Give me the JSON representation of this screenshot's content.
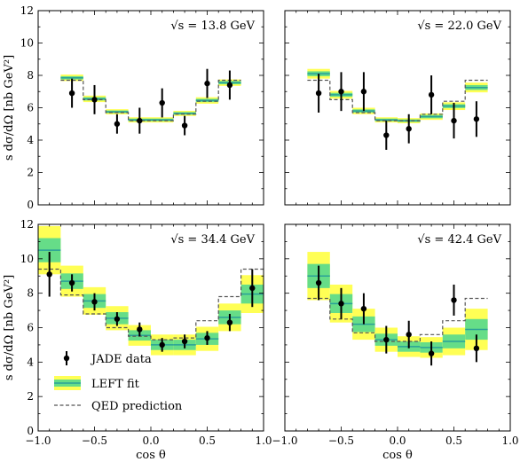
{
  "colors": {
    "data": "#000000",
    "fit_line": "#2aa198",
    "band_inner": "#66dd88",
    "band_outer": "#ffff55",
    "qed": "#555555",
    "frame": "#000000"
  },
  "shared": {
    "xlabel": "cos θ",
    "ylabel": "s dσ/dΩ [nb GeV²]",
    "xticks": [
      "−1.0",
      "−0.5",
      "0.0",
      "0.5",
      "1.0"
    ],
    "yticks": [
      "0",
      "2",
      "4",
      "6",
      "8",
      "10",
      "12"
    ]
  },
  "legend": {
    "data": "JADE data",
    "fit": "LEFT fit",
    "qed": "QED prediction"
  },
  "chart_data": [
    {
      "type": "scatter",
      "energy_label": "√s = 13.8 GeV",
      "xlim": [
        -1.0,
        1.0
      ],
      "ylim": [
        0,
        12
      ],
      "bins": [
        [
          -0.8,
          -0.6
        ],
        [
          -0.6,
          -0.4
        ],
        [
          -0.4,
          -0.2
        ],
        [
          -0.2,
          0.0
        ],
        [
          0.0,
          0.2
        ],
        [
          0.2,
          0.4
        ],
        [
          0.4,
          0.6
        ],
        [
          0.6,
          0.8
        ]
      ],
      "data": [
        {
          "x": -0.7,
          "y": 6.9,
          "err": 0.9
        },
        {
          "x": -0.5,
          "y": 6.5,
          "err": 0.9
        },
        {
          "x": -0.3,
          "y": 5.0,
          "err": 0.6
        },
        {
          "x": -0.1,
          "y": 5.2,
          "err": 0.8
        },
        {
          "x": 0.1,
          "y": 6.3,
          "err": 0.9
        },
        {
          "x": 0.3,
          "y": 4.9,
          "err": 0.6
        },
        {
          "x": 0.5,
          "y": 7.5,
          "err": 0.9
        },
        {
          "x": 0.7,
          "y": 7.4,
          "err": 0.9
        }
      ],
      "fit": [
        7.85,
        6.55,
        5.75,
        5.25,
        5.25,
        5.65,
        6.45,
        7.55
      ],
      "fit_unc": [
        0.1,
        0.1,
        0.08,
        0.08,
        0.08,
        0.08,
        0.1,
        0.1
      ],
      "qed": [
        7.7,
        6.5,
        5.7,
        5.2,
        5.2,
        5.6,
        6.4,
        7.7
      ]
    },
    {
      "type": "scatter",
      "energy_label": "√s = 22.0 GeV",
      "xlim": [
        -1.0,
        1.0
      ],
      "ylim": [
        0,
        12
      ],
      "bins": [
        [
          -0.8,
          -0.6
        ],
        [
          -0.6,
          -0.4
        ],
        [
          -0.4,
          -0.2
        ],
        [
          -0.2,
          0.0
        ],
        [
          0.0,
          0.2
        ],
        [
          0.2,
          0.4
        ],
        [
          0.4,
          0.6
        ],
        [
          0.6,
          0.8
        ]
      ],
      "data": [
        {
          "x": -0.7,
          "y": 6.9,
          "err": 1.2
        },
        {
          "x": -0.5,
          "y": 7.0,
          "err": 1.2
        },
        {
          "x": -0.3,
          "y": 7.0,
          "err": 1.2
        },
        {
          "x": -0.1,
          "y": 4.3,
          "err": 0.9
        },
        {
          "x": 0.1,
          "y": 4.7,
          "err": 0.9
        },
        {
          "x": 0.3,
          "y": 6.8,
          "err": 1.2
        },
        {
          "x": 0.5,
          "y": 5.2,
          "err": 1.1
        },
        {
          "x": 0.7,
          "y": 5.3,
          "err": 1.1
        }
      ],
      "fit": [
        8.1,
        6.8,
        5.8,
        5.25,
        5.2,
        5.45,
        6.1,
        7.25
      ],
      "fit_unc": [
        0.15,
        0.12,
        0.1,
        0.08,
        0.08,
        0.1,
        0.12,
        0.15
      ],
      "qed": [
        7.7,
        6.5,
        5.7,
        5.2,
        5.2,
        5.6,
        6.4,
        7.7
      ]
    },
    {
      "type": "scatter",
      "energy_label": "√s = 34.4 GeV",
      "xlim": [
        -1.0,
        1.0
      ],
      "ylim": [
        0,
        12
      ],
      "bins": [
        [
          -1.0,
          -0.8
        ],
        [
          -0.8,
          -0.6
        ],
        [
          -0.6,
          -0.4
        ],
        [
          -0.4,
          -0.2
        ],
        [
          -0.2,
          0.0
        ],
        [
          0.0,
          0.2
        ],
        [
          0.2,
          0.4
        ],
        [
          0.4,
          0.6
        ],
        [
          0.6,
          0.8
        ],
        [
          0.8,
          1.0
        ]
      ],
      "data": [
        {
          "x": -0.9,
          "y": 9.1,
          "err": 1.3
        },
        {
          "x": -0.7,
          "y": 8.6,
          "err": 0.5
        },
        {
          "x": -0.5,
          "y": 7.5,
          "err": 0.5
        },
        {
          "x": -0.3,
          "y": 6.5,
          "err": 0.4
        },
        {
          "x": -0.1,
          "y": 5.9,
          "err": 0.4
        },
        {
          "x": 0.1,
          "y": 5.0,
          "err": 0.4
        },
        {
          "x": 0.3,
          "y": 5.2,
          "err": 0.4
        },
        {
          "x": 0.5,
          "y": 5.4,
          "err": 0.4
        },
        {
          "x": 0.7,
          "y": 6.3,
          "err": 0.5
        },
        {
          "x": 0.9,
          "y": 8.3,
          "err": 1.1
        }
      ],
      "fit": [
        10.5,
        8.7,
        7.55,
        6.55,
        5.55,
        5.0,
        5.0,
        5.35,
        6.6,
        7.95
      ],
      "fit_unc": [
        0.7,
        0.45,
        0.4,
        0.35,
        0.3,
        0.3,
        0.3,
        0.35,
        0.4,
        0.55
      ],
      "qed": [
        9.4,
        7.9,
        6.8,
        6.0,
        5.5,
        5.3,
        5.4,
        6.4,
        7.8,
        9.4
      ]
    },
    {
      "type": "scatter",
      "energy_label": "√s = 42.4 GeV",
      "xlim": [
        -1.0,
        1.0
      ],
      "ylim": [
        0,
        12
      ],
      "bins": [
        [
          -0.8,
          -0.6
        ],
        [
          -0.6,
          -0.4
        ],
        [
          -0.4,
          -0.2
        ],
        [
          -0.2,
          0.0
        ],
        [
          0.0,
          0.2
        ],
        [
          0.2,
          0.4
        ],
        [
          0.4,
          0.6
        ],
        [
          0.6,
          0.8
        ]
      ],
      "data": [
        {
          "x": -0.7,
          "y": 8.6,
          "err": 1.0
        },
        {
          "x": -0.5,
          "y": 7.4,
          "err": 0.9
        },
        {
          "x": -0.3,
          "y": 7.1,
          "err": 0.9
        },
        {
          "x": -0.1,
          "y": 5.3,
          "err": 0.8
        },
        {
          "x": 0.1,
          "y": 5.6,
          "err": 0.8
        },
        {
          "x": 0.3,
          "y": 4.5,
          "err": 0.7
        },
        {
          "x": 0.5,
          "y": 7.6,
          "err": 0.9
        },
        {
          "x": 0.7,
          "y": 4.8,
          "err": 0.8
        }
      ],
      "fit": [
        9.0,
        7.4,
        6.2,
        5.3,
        4.9,
        4.85,
        5.2,
        5.9
      ],
      "fit_unc": [
        0.7,
        0.55,
        0.45,
        0.35,
        0.3,
        0.3,
        0.4,
        0.6
      ],
      "qed": [
        7.7,
        6.5,
        5.7,
        5.2,
        5.2,
        5.6,
        6.4,
        7.7
      ]
    }
  ]
}
